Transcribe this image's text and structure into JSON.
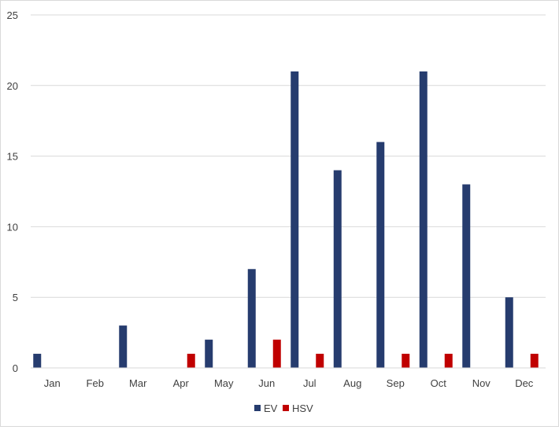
{
  "chart_data": {
    "type": "bar",
    "categories": [
      "Jan",
      "Feb",
      "Mar",
      "Apr",
      "May",
      "Jun",
      "Jul",
      "Aug",
      "Sep",
      "Oct",
      "Nov",
      "Dec"
    ],
    "series": [
      {
        "name": "EV",
        "color": "#263c6e",
        "values": [
          1,
          0,
          3,
          0,
          2,
          7,
          21,
          14,
          16,
          21,
          13,
          5
        ]
      },
      {
        "name": "HSV",
        "color": "#c00000",
        "values": [
          0,
          0,
          0,
          1,
          0,
          2,
          1,
          0,
          1,
          1,
          0,
          1
        ]
      }
    ],
    "yticks": [
      0,
      5,
      10,
      15,
      20,
      25
    ],
    "ylim": [
      0,
      25
    ],
    "grid": true,
    "legend_position": "bottom"
  }
}
